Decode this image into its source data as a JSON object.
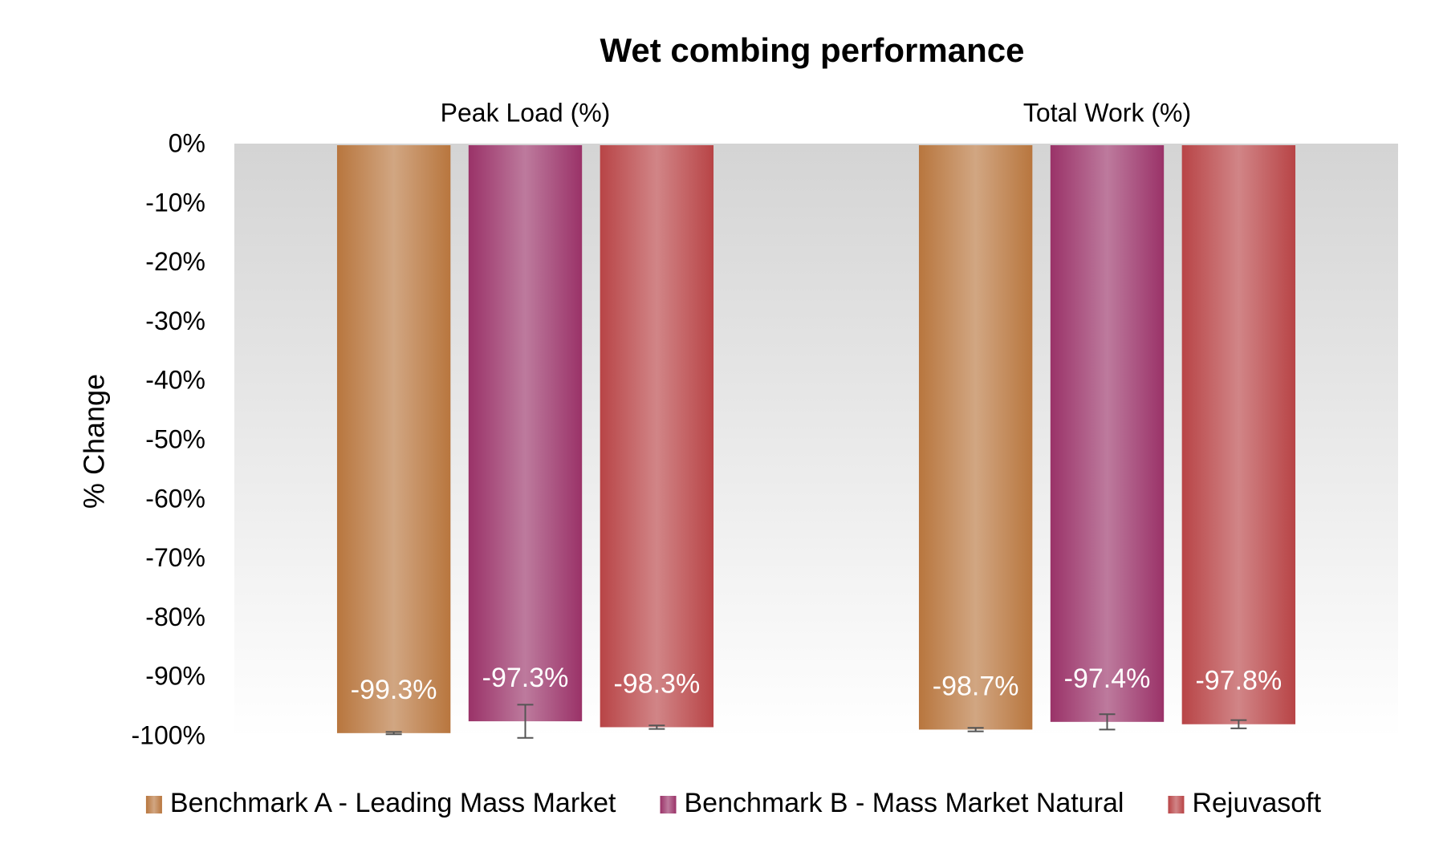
{
  "chart_data": {
    "type": "bar",
    "title": "Wet combing performance",
    "y_label": "% Change",
    "categories": [
      "Peak Load (%)",
      "Total Work (%)"
    ],
    "series": [
      {
        "name": "Benchmark A - Leading Mass Market",
        "color": "#b8763e",
        "values": [
          -99.3,
          -98.7
        ],
        "value_labels": [
          "-99.3%",
          "-98.7%"
        ],
        "errors": [
          0.2,
          0.3
        ]
      },
      {
        "name": "Benchmark B - Mass Market Natural",
        "color": "#9a3268",
        "values": [
          -97.3,
          -97.4
        ],
        "value_labels": [
          "-97.3%",
          "-97.4%"
        ],
        "errors": [
          2.8,
          1.3
        ]
      },
      {
        "name": "Rejuvasoft",
        "color": "#b84446",
        "values": [
          -98.3,
          -97.8
        ],
        "value_labels": [
          "-98.3%",
          "-97.8%"
        ],
        "errors": [
          0.3,
          0.7
        ]
      }
    ],
    "ylim": [
      -100,
      0
    ],
    "yticks": [
      {
        "value": 0,
        "label": "0%"
      },
      {
        "value": -10,
        "label": "-10%"
      },
      {
        "value": -20,
        "label": "-20%"
      },
      {
        "value": -30,
        "label": "-30%"
      },
      {
        "value": -40,
        "label": "-40%"
      },
      {
        "value": -50,
        "label": "-50%"
      },
      {
        "value": -60,
        "label": "-60%"
      },
      {
        "value": -70,
        "label": "-70%"
      },
      {
        "value": -80,
        "label": "-80%"
      },
      {
        "value": -90,
        "label": "-90%"
      },
      {
        "value": -100,
        "label": "-100%"
      }
    ],
    "legend": "bottom",
    "error_color": "#555555"
  }
}
